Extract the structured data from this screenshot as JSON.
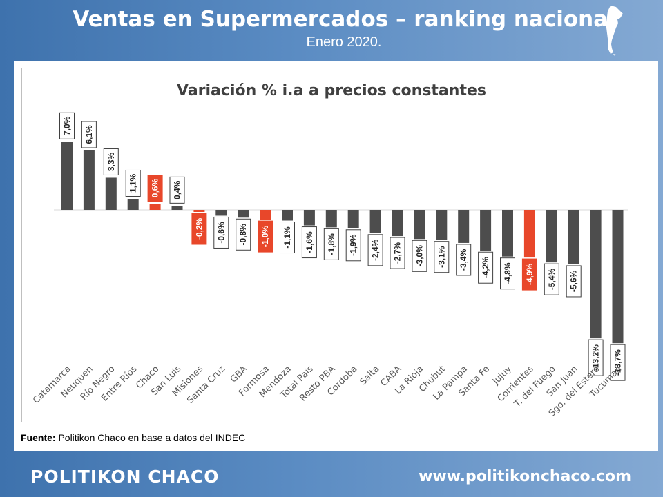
{
  "header": {
    "title": "Ventas en Supermercados – ranking nacional",
    "subtitle": "Enero 2020."
  },
  "source": {
    "label": "Fuente:",
    "text": " Politikon Chaco en base a datos del INDEC"
  },
  "footer": {
    "brand": "POLITIKON CHACO",
    "url": "www.politikonchaco.com"
  },
  "colors": {
    "bar_default": "#4d4d4d",
    "bar_highlight": "#e8472a",
    "label_border": "#404040",
    "highlight_label_bg": "#e8472a"
  },
  "chart_data": {
    "type": "bar",
    "title": "Variación % i.a a precios constantes",
    "xlabel": "",
    "ylabel": "",
    "grid": false,
    "legend": "none",
    "ylim": [
      -14,
      7
    ],
    "categories": [
      "Catamarca",
      "Neuquen",
      "Río Negro",
      "Entre Ríos",
      "Chaco",
      "San Luis",
      "Misiones",
      "Santa Cruz",
      "GBA",
      "Formosa",
      "Mendoza",
      "Total País",
      "Resto PBA",
      "Cordoba",
      "Salta",
      "CABA",
      "La Rioja",
      "Chubut",
      "La Pampa",
      "Santa Fe",
      "Jujuy",
      "Corrientes",
      "T. del Fuego",
      "San Juan",
      "Sgo. del Estero",
      "Tucuman"
    ],
    "values": [
      7.0,
      6.1,
      3.3,
      1.1,
      0.6,
      0.4,
      -0.2,
      -0.6,
      -0.8,
      -1.0,
      -1.1,
      -1.6,
      -1.8,
      -1.9,
      -2.4,
      -2.7,
      -3.0,
      -3.1,
      -3.4,
      -4.2,
      -4.8,
      -4.9,
      -5.4,
      -5.6,
      -13.2,
      -13.7
    ],
    "data_labels": [
      "7,0%",
      "6,1%",
      "3,3%",
      "1,1%",
      "0,6%",
      "0,4%",
      "-0,2%",
      "-0,6%",
      "-0,8%",
      "-1,0%",
      "-1,1%",
      "-1,6%",
      "-1,8%",
      "-1,9%",
      "-2,4%",
      "-2,7%",
      "-3,0%",
      "-3,1%",
      "-3,4%",
      "-4,2%",
      "-4,8%",
      "-4,9%",
      "-5,4%",
      "-5,6%",
      "-13,2%",
      "-13,7%"
    ],
    "highlighted": [
      "Chaco",
      "Misiones",
      "Formosa",
      "Corrientes"
    ]
  }
}
